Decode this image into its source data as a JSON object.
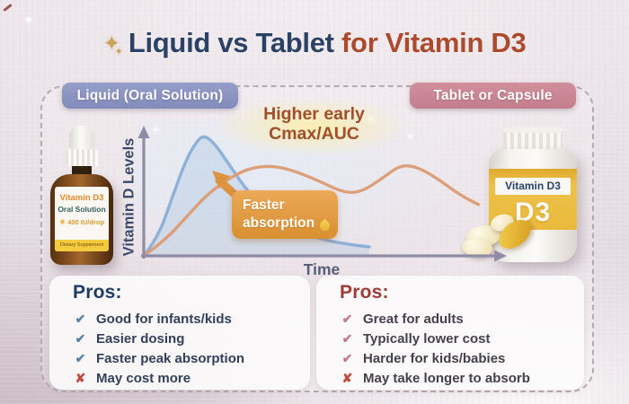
{
  "title": {
    "sparkle_icon": "✦",
    "main": "Liquid vs Tablet",
    "accent": " for Vitamin D3"
  },
  "badges": {
    "liquid": "Liquid (Oral Solution)",
    "tablet": "Tablet or Capsule"
  },
  "chart_data": {
    "type": "line",
    "xlabel": "Time",
    "ylabel": "Vitamin D Levels",
    "axis_ticks": "none (conceptual curves)",
    "grid": false,
    "series": [
      {
        "name": "Liquid (Oral Solution)",
        "color": "#8aaed6",
        "fill": true,
        "fill_color": "rgba(150,185,220,0.28)",
        "points": [
          [
            0,
            0
          ],
          [
            4,
            14
          ],
          [
            8,
            45
          ],
          [
            12,
            75
          ],
          [
            15,
            89
          ],
          [
            17,
            94
          ],
          [
            20,
            88
          ],
          [
            24,
            72
          ],
          [
            29,
            52
          ],
          [
            35,
            34
          ],
          [
            42,
            21
          ],
          [
            50,
            13
          ],
          [
            58,
            9
          ],
          [
            64,
            7
          ]
        ]
      },
      {
        "name": "Tablet or Capsule",
        "color": "#dc9b73",
        "fill": false,
        "points": [
          [
            0,
            0
          ],
          [
            6,
            12
          ],
          [
            12,
            30
          ],
          [
            18,
            48
          ],
          [
            25,
            62
          ],
          [
            31,
            69
          ],
          [
            37,
            70
          ],
          [
            43,
            66
          ],
          [
            50,
            58
          ],
          [
            57,
            49
          ],
          [
            62,
            50
          ],
          [
            68,
            61
          ],
          [
            73,
            71
          ],
          [
            78,
            69
          ],
          [
            84,
            59
          ],
          [
            90,
            47
          ],
          [
            95,
            40
          ]
        ]
      }
    ],
    "annotations": [
      {
        "text": "Higher early Cmax/AUC",
        "refers_to": "Liquid (Oral Solution) curve"
      },
      {
        "text": "Faster absorption",
        "refers_to": "Liquid (Oral Solution) curve"
      }
    ]
  },
  "chart_labels": {
    "higher_line1": "Higher early",
    "higher_line2": "Cmax/AUC",
    "faster_line1": "Faster",
    "faster_line2": "absorption"
  },
  "liquid_bottle": {
    "title": "Vitamin D3",
    "subtitle": "Oral Solution",
    "dose": "400 IU/drop",
    "sun_icon": "☀",
    "footer": "Dietary Supplement"
  },
  "tablet_bottle": {
    "label": "Vitamin D3",
    "big_label": "D3"
  },
  "pros_left": {
    "heading": "Pros:",
    "items": [
      {
        "icon": "✔",
        "type": "pro",
        "text": "Good for infants/kids"
      },
      {
        "icon": "✔",
        "type": "pro",
        "text": "Easier dosing"
      },
      {
        "icon": "✔",
        "type": "pro",
        "text": "Faster peak absorption"
      },
      {
        "icon": "✘",
        "type": "con",
        "text": "May cost more"
      }
    ]
  },
  "pros_right": {
    "heading": "Pros:",
    "items": [
      {
        "icon": "✔",
        "type": "pro",
        "text": "Great for adults"
      },
      {
        "icon": "✔",
        "type": "pro",
        "text": "Typically lower cost"
      },
      {
        "icon": "✔",
        "type": "pro",
        "text": "Harder for kids/babies"
      },
      {
        "icon": "✘",
        "type": "con",
        "text": "May take longer to absorb"
      }
    ]
  },
  "colors": {
    "title_navy": "#2b4166",
    "title_rust": "#ad4a2e",
    "badge_liquid": "#8d95c4",
    "badge_tablet": "#ca8290",
    "curve_liquid": "#8aaed6",
    "curve_tablet": "#dc9b73",
    "callout_orange": "#e09a43",
    "axis_gray": "#8f8ca6",
    "check_liquid": "#5c80a4",
    "check_tablet": "#c07c87",
    "cross_red": "#c04a40",
    "background": "#e8e0e5"
  }
}
